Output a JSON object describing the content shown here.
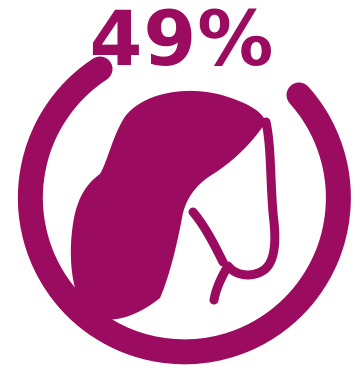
{
  "stat": {
    "percent_text": "49%",
    "value": 49
  },
  "icon": "head-silhouette-icon",
  "colors": {
    "accent": "#9B0B5F",
    "background": "#FFFFFF"
  }
}
